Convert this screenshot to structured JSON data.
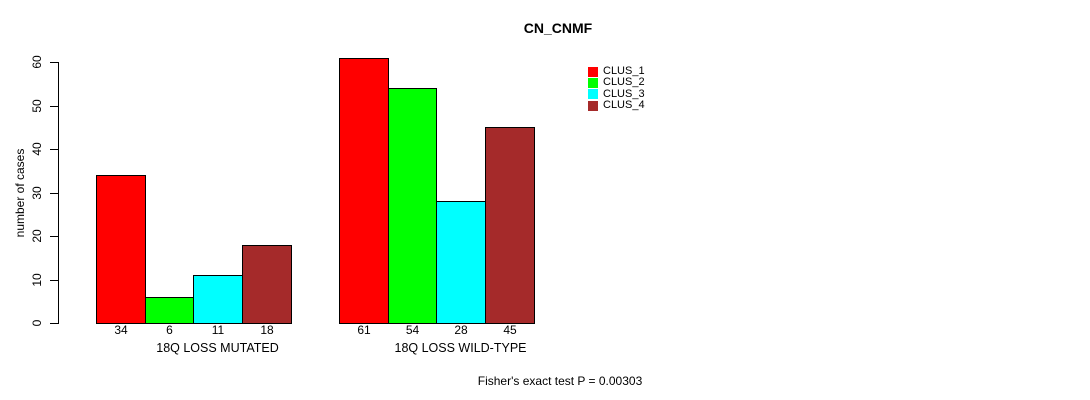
{
  "title": "CN_CNMF",
  "footer": "Fisher's exact test P = 0.00303",
  "y_axis": {
    "label": "number of cases"
  },
  "chart_data": {
    "type": "bar",
    "title": "CN_CNMF",
    "xlabel": "",
    "ylabel": "number of cases",
    "ylim": [
      0,
      61
    ],
    "y_ticks": [
      0,
      10,
      20,
      30,
      40,
      50,
      60
    ],
    "grid": false,
    "legend_position": "top-right",
    "categories": [
      "18Q LOSS MUTATED",
      "18Q LOSS WILD-TYPE"
    ],
    "series": [
      {
        "name": "CLUS_1",
        "color": "#ff0000",
        "values": [
          34,
          61
        ]
      },
      {
        "name": "CLUS_2",
        "color": "#00ff00",
        "values": [
          6,
          54
        ]
      },
      {
        "name": "CLUS_3",
        "color": "#00ffff",
        "values": [
          11,
          28
        ]
      },
      {
        "name": "CLUS_4",
        "color": "#a52a2a",
        "values": [
          18,
          45
        ]
      }
    ],
    "bar_value_labels": [
      [
        34,
        6,
        11,
        18
      ],
      [
        61,
        54,
        28,
        45
      ]
    ],
    "annotation": "Fisher's exact test P = 0.00303"
  }
}
